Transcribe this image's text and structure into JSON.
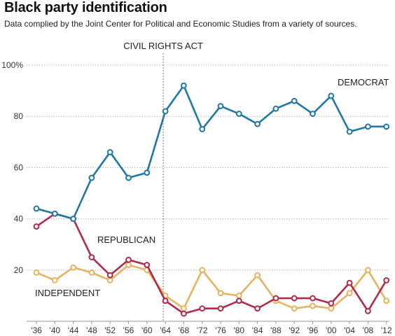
{
  "chart_data": {
    "type": "line",
    "title": "Black party identification",
    "subtitle": "Data complied by the Joint Center for Political and Economic Studies from a variety of sources.",
    "categories": [
      "'36",
      "'40",
      "'44",
      "'48",
      "'52",
      "'56",
      "'60",
      "'64",
      "'68",
      "'72",
      "'76",
      "'80",
      "'84",
      "'88",
      "'92",
      "'96",
      "'00",
      "'04",
      "'08",
      "'12"
    ],
    "series": [
      {
        "name": "DEMOCRAT",
        "color": "#1f77a8",
        "values": [
          44,
          42,
          40,
          56,
          66,
          56,
          58,
          82,
          92,
          75,
          84,
          81,
          77,
          83,
          86,
          81,
          88,
          74,
          76,
          76
        ]
      },
      {
        "name": "REPUBLICAN",
        "color": "#b02a4c",
        "values": [
          37,
          42,
          40,
          25,
          18,
          24,
          22,
          8,
          3,
          5,
          5,
          8,
          5,
          9,
          9,
          9,
          7,
          15,
          4,
          16
        ]
      },
      {
        "name": "INDEPENDENT",
        "color": "#e8b260",
        "values": [
          19,
          16,
          21,
          19,
          16,
          22,
          20,
          10,
          5,
          20,
          11,
          10,
          18,
          8,
          5,
          6,
          5,
          11,
          20,
          8
        ]
      }
    ],
    "yticks": [
      "100%",
      "80",
      "60",
      "40",
      "20"
    ],
    "ytick_values": [
      100,
      80,
      60,
      40,
      20
    ],
    "ylim": [
      0,
      100
    ],
    "grid": true,
    "annotation": "CIVIL RIGHTS ACT",
    "annotation_at": "'64"
  }
}
